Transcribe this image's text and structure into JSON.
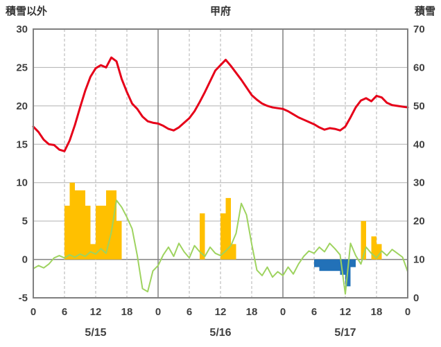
{
  "page": {
    "left_axis_title": "積雪以外",
    "station_title": "甲府",
    "right_axis_title": "積雪"
  },
  "chart_data": {
    "type": "line+bar",
    "title": "甲府",
    "left_axis": {
      "title": "積雪以外",
      "range": [
        -5,
        30
      ],
      "ticks": [
        30,
        25,
        20,
        15,
        10,
        5,
        0,
        -5
      ]
    },
    "right_axis": {
      "title": "積雪",
      "range": [
        0,
        70
      ],
      "ticks": [
        70,
        60,
        50,
        40,
        30,
        20,
        10,
        0
      ]
    },
    "x_axis": {
      "total_hours": 72,
      "tick_hours": [
        0,
        6,
        12,
        18,
        24,
        30,
        36,
        42,
        48,
        54,
        60,
        66,
        72
      ],
      "tick_labels": [
        "0",
        "6",
        "12",
        "18",
        "0",
        "6",
        "12",
        "18",
        "0",
        "6",
        "12",
        "18",
        "0"
      ],
      "day_labels": [
        {
          "label": "5/15",
          "hour": 12
        },
        {
          "label": "5/16",
          "hour": 36
        },
        {
          "label": "5/17",
          "hour": 60
        }
      ]
    },
    "grid": {
      "border_color": "#7f7f7f",
      "major_color": "#808080",
      "minor_color": "#b0b0b0",
      "zero_color": "#808080"
    },
    "series": {
      "red_line": {
        "name": "red-temperature-line",
        "color": "#e60019",
        "width": 3,
        "axis": "left",
        "start_hour": 0,
        "values": [
          17.3,
          16.6,
          15.6,
          15.0,
          14.9,
          14.3,
          14.1,
          15.5,
          17.5,
          19.8,
          22.0,
          23.8,
          24.9,
          25.3,
          25.0,
          26.3,
          25.8,
          23.5,
          21.8,
          20.3,
          19.6,
          18.6,
          18.0,
          17.8,
          17.7,
          17.4,
          17.0,
          16.8,
          17.2,
          17.8,
          18.4,
          19.3,
          20.5,
          21.8,
          23.2,
          24.6,
          25.3,
          26.0,
          25.2,
          24.3,
          23.4,
          22.4,
          21.4,
          20.8,
          20.3,
          20.0,
          19.8,
          19.7,
          19.6,
          19.3,
          18.9,
          18.5,
          18.2,
          17.9,
          17.6,
          17.2,
          16.9,
          17.1,
          17.0,
          16.8,
          17.3,
          18.5,
          19.8,
          20.7,
          21.0,
          20.6,
          21.3,
          21.1,
          20.4,
          20.1,
          20.0,
          19.9,
          19.8
        ]
      },
      "green_line": {
        "name": "green-line",
        "color": "#9ed35f",
        "width": 2,
        "axis": "left",
        "start_hour": 0,
        "values": [
          -1.2,
          -0.8,
          -1.1,
          -0.6,
          0.2,
          0.5,
          0.2,
          0.6,
          0.3,
          0.7,
          0.4,
          1.0,
          0.7,
          1.4,
          0.8,
          3.5,
          7.7,
          6.8,
          5.5,
          4.0,
          0.5,
          -3.8,
          -4.2,
          -1.5,
          -0.8,
          0.6,
          1.6,
          0.4,
          2.1,
          1.0,
          0.2,
          1.8,
          1.0,
          0.4,
          1.6,
          0.8,
          0.5,
          1.1,
          1.8,
          3.4,
          7.3,
          5.8,
          2.0,
          -1.4,
          -2.1,
          -1.0,
          -2.3,
          -1.6,
          -2.1,
          -1.0,
          -1.9,
          -0.6,
          0.4,
          1.1,
          0.8,
          1.6,
          1.0,
          2.1,
          1.4,
          0.6,
          -4.5,
          2.1,
          0.5,
          -0.6,
          1.6,
          0.8,
          0.2,
          1.1,
          0.5,
          1.3,
          0.8,
          0.3,
          -1.6
        ]
      },
      "yellow_bars": {
        "name": "yellow-bars",
        "color": "#ffc000",
        "axis": "left",
        "points": [
          {
            "hour": 6,
            "value": 7
          },
          {
            "hour": 7,
            "value": 10
          },
          {
            "hour": 8,
            "value": 9
          },
          {
            "hour": 9,
            "value": 9
          },
          {
            "hour": 10,
            "value": 7
          },
          {
            "hour": 11,
            "value": 2
          },
          {
            "hour": 12,
            "value": 7
          },
          {
            "hour": 13,
            "value": 7
          },
          {
            "hour": 14,
            "value": 9
          },
          {
            "hour": 15,
            "value": 9
          },
          {
            "hour": 16,
            "value": 5
          },
          {
            "hour": 32,
            "value": 6
          },
          {
            "hour": 36,
            "value": 6
          },
          {
            "hour": 37,
            "value": 8
          },
          {
            "hour": 38,
            "value": 2
          },
          {
            "hour": 63,
            "value": 5
          },
          {
            "hour": 65,
            "value": 3
          },
          {
            "hour": 66,
            "value": 2
          }
        ]
      },
      "blue_bars": {
        "name": "blue-bars",
        "color": "#2271b8",
        "axis": "left",
        "points": [
          {
            "hour": 54,
            "value": -1
          },
          {
            "hour": 55,
            "value": -1.5
          },
          {
            "hour": 56,
            "value": -1.5
          },
          {
            "hour": 57,
            "value": -1.5
          },
          {
            "hour": 58,
            "value": -1.5
          },
          {
            "hour": 59,
            "value": -2
          },
          {
            "hour": 60,
            "value": -3.5
          },
          {
            "hour": 61,
            "value": -1
          }
        ]
      }
    }
  }
}
